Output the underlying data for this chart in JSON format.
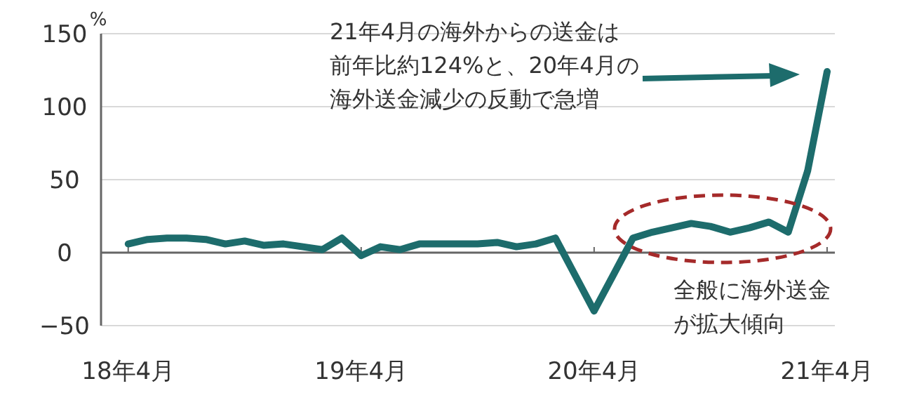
{
  "chart_data": {
    "type": "line",
    "ylabel": "%",
    "categories": [
      "18年4月",
      null,
      null,
      null,
      null,
      null,
      null,
      null,
      null,
      null,
      null,
      null,
      "19年4月",
      null,
      null,
      null,
      null,
      null,
      null,
      null,
      null,
      null,
      null,
      null,
      "20年4月",
      null,
      null,
      null,
      null,
      null,
      null,
      null,
      null,
      null,
      null,
      null,
      "21年4月"
    ],
    "series": [
      {
        "color": "#1d6c6c",
        "values": [
          6,
          9,
          10,
          10,
          9,
          6,
          8,
          5,
          6,
          4,
          2,
          10,
          -2,
          4,
          2,
          6,
          6,
          6,
          6,
          7,
          4,
          6,
          10,
          -15,
          -40,
          -15,
          10,
          14,
          17,
          20,
          18,
          14,
          17,
          21,
          14,
          56,
          124
        ]
      }
    ],
    "ylim": [
      -50,
      150
    ],
    "yticks": [
      -50,
      0,
      50,
      100,
      150
    ],
    "grid": "y",
    "annotations": [
      "21年4月の海外からの送金は前年比約124%と、20年4月の海外送金減少の反動で急増",
      "全般に海外送金が拡大傾向"
    ]
  }
}
